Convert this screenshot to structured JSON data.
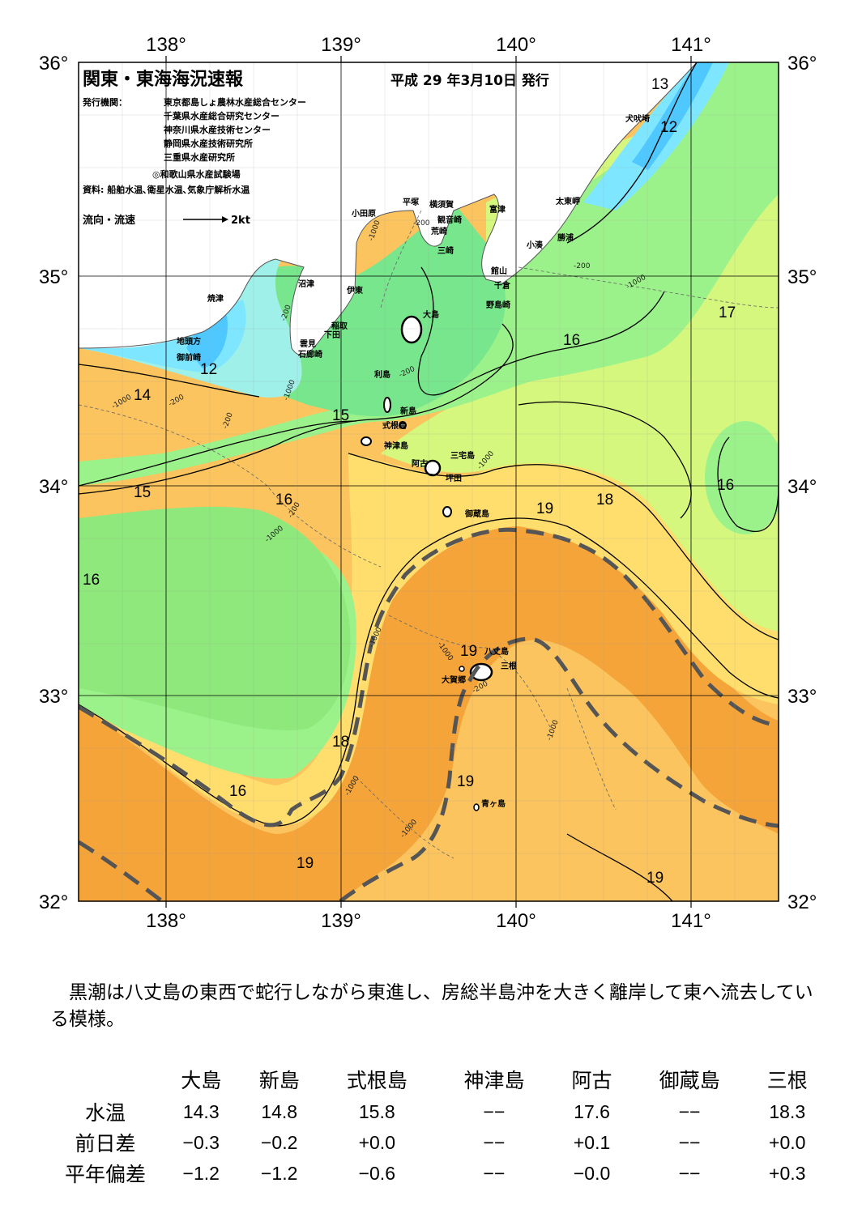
{
  "header": {
    "title": "関東・東海海況速報",
    "date": "平成 29 年3月10日 発行",
    "issuer_label": "発行機関：",
    "issuers": [
      "東京都島しょ農林水産総合センター",
      "千葉県水産総合研究センター",
      "神奈川県水産技術センター",
      "静岡県水産技術研究所",
      "三重県水産研究所",
      "◎和歌山県水産試験場"
    ],
    "source": "資料: 船舶水温､衛星水温､気象庁解析水温",
    "legend_label": "流向・流速",
    "legend_scale": "2kt"
  },
  "axes": {
    "top_labels": [
      "138°",
      "139°",
      "140°",
      "141°"
    ],
    "bottom_labels": [
      "138°",
      "139°",
      "140°",
      "141°"
    ],
    "left_labels": [
      "36°",
      "35°",
      "34°",
      "33°",
      "32°"
    ],
    "right_labels": [
      "36°",
      "35°",
      "34°",
      "33°",
      "32°"
    ]
  },
  "contour_labels": [
    "13",
    "12",
    "12",
    "14",
    "15",
    "15",
    "16",
    "16",
    "16",
    "16",
    "16",
    "17",
    "18",
    "18",
    "19",
    "19",
    "19",
    "19",
    "19",
    "16"
  ],
  "depth_labels": [
    "-200",
    "-1000",
    "-200",
    "-1000",
    "-200",
    "-200",
    "-200",
    "-1000",
    "-200",
    "-1000",
    "-1000",
    "-1000",
    "-200",
    "-1000",
    "-1000",
    "-1000",
    "-1000",
    "-1000",
    "-200"
  ],
  "places": [
    {
      "name": "小田原"
    },
    {
      "name": "平塚"
    },
    {
      "name": "横須賀"
    },
    {
      "name": "観音崎"
    },
    {
      "name": "富津"
    },
    {
      "name": "荒崎"
    },
    {
      "name": "三崎"
    },
    {
      "name": "館山"
    },
    {
      "name": "千倉"
    },
    {
      "name": "野島崎"
    },
    {
      "name": "太東岬"
    },
    {
      "name": "勝浦"
    },
    {
      "name": "小湊"
    },
    {
      "name": "犬吠埼"
    },
    {
      "name": "沼津"
    },
    {
      "name": "伊東"
    },
    {
      "name": "稲取"
    },
    {
      "name": "下田"
    },
    {
      "name": "雲見"
    },
    {
      "name": "石廊崎"
    },
    {
      "name": "焼津"
    },
    {
      "name": "地頭方"
    },
    {
      "name": "御前崎"
    },
    {
      "name": "大島"
    },
    {
      "name": "利島"
    },
    {
      "name": "新島"
    },
    {
      "name": "式根島"
    },
    {
      "name": "神津島"
    },
    {
      "name": "三宅島"
    },
    {
      "name": "阿古"
    },
    {
      "name": "坪田"
    },
    {
      "name": "御蔵島"
    },
    {
      "name": "八丈島"
    },
    {
      "name": "三根"
    },
    {
      "name": "大賀郷"
    },
    {
      "name": "青ヶ島"
    }
  ],
  "colors": {
    "t12": "#4fc8ff",
    "t13": "#7fe6ff",
    "t14": "#9ff0e8",
    "t15": "#78e68c",
    "t16": "#9cf28a",
    "t17": "#d6f77e",
    "t18": "#ffde6e",
    "t19": "#fbc45e",
    "t20": "#f5a43a",
    "land": "#ffffff",
    "kuroshio": "#555555"
  },
  "summary": "黒潮は八丈島の東西で蛇行しながら東進し、房総半島沖を大きく離岸して東へ流去している模様。",
  "table": {
    "columns": [
      "大島",
      "新島",
      "式根島",
      "神津島",
      "阿古",
      "御蔵島",
      "三根"
    ],
    "rows": [
      {
        "label": "水温",
        "values": [
          "14.3",
          "14.8",
          "15.8",
          "−−",
          "17.6",
          "−−",
          "18.3"
        ]
      },
      {
        "label": "前日差",
        "values": [
          "−0.3",
          "−0.2",
          "+0.0",
          "−−",
          "+0.1",
          "−−",
          "+0.0"
        ]
      },
      {
        "label": "平年偏差",
        "values": [
          "−1.2",
          "−1.2",
          "−0.6",
          "−−",
          "−0.0",
          "−−",
          "+0.3"
        ]
      }
    ]
  }
}
